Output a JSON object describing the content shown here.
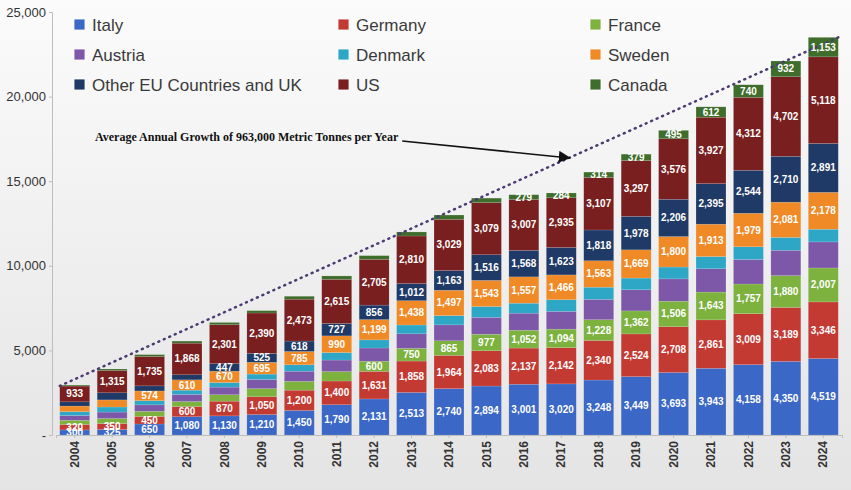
{
  "chart_data": {
    "type": "bar",
    "stacked": true,
    "data_labels": true,
    "grid": false,
    "legend": "top-left",
    "annotation": "Average Annual Growth of 963,000 Metric Tonnes per Year",
    "trend": {
      "start": 2900,
      "end": 23500
    },
    "categories": [
      "2004",
      "2005",
      "2006",
      "2007",
      "2008",
      "2009",
      "2010",
      "2011",
      "2012",
      "2013",
      "2014",
      "2015",
      "2016",
      "2017",
      "2018",
      "2019",
      "2020",
      "2021",
      "2022",
      "2023",
      "2024"
    ],
    "ylim": [
      0,
      25000
    ],
    "yticks": [
      {
        "value": 0,
        "label": "-"
      },
      {
        "value": 5000,
        "label": "5,000"
      },
      {
        "value": 10000,
        "label": "10,000"
      },
      {
        "value": 15000,
        "label": "15,000"
      },
      {
        "value": 20000,
        "label": "20,000"
      },
      {
        "value": 25000,
        "label": "25,000"
      }
    ],
    "series": [
      {
        "name": "Italy",
        "color": "#3b67c6",
        "values": [
          300,
          325,
          650,
          1080,
          1130,
          1210,
          1450,
          1790,
          2131,
          2513,
          2740,
          2894,
          3001,
          3020,
          3248,
          3449,
          3693,
          3943,
          4158,
          4350,
          4519
        ],
        "value_labels": [
          "300",
          "325",
          "650",
          "1,080",
          "1,130",
          "1,210",
          "1,450",
          "1,790",
          "2,131",
          "2,513",
          "2,740",
          "2,894",
          "3,001",
          "3,020",
          "3,248",
          "3,449",
          "3,693",
          "3,943",
          "4,158",
          "4,350",
          "4,519"
        ]
      },
      {
        "name": "Germany",
        "color": "#c33a33",
        "values": [
          320,
          350,
          450,
          600,
          870,
          1050,
          1200,
          1400,
          1631,
          1858,
          1964,
          2083,
          2137,
          2142,
          2340,
          2524,
          2708,
          2861,
          3009,
          3189,
          3346
        ],
        "value_labels": [
          "320",
          "350",
          "450",
          "600",
          "870",
          "1,050",
          "1,200",
          "1,400",
          "1,631",
          "1,858",
          "1,964",
          "2,083",
          "2,137",
          "2,142",
          "2,340",
          "2,524",
          "2,708",
          "2,861",
          "3,009",
          "3,189",
          "3,346"
        ]
      },
      {
        "name": "France",
        "color": "#7db23f",
        "values": [
          250,
          300,
          300,
          300,
          380,
          480,
          520,
          560,
          600,
          750,
          865,
          977,
          1052,
          1094,
          1228,
          1362,
          1506,
          1643,
          1757,
          1880,
          2007
        ],
        "value_labels": [
          null,
          null,
          null,
          null,
          null,
          null,
          null,
          null,
          "600",
          "750",
          "865",
          "977",
          "1,052",
          "1,094",
          "1,228",
          "1,362",
          "1,506",
          "1,643",
          "1,757",
          "1,880",
          "2,007"
        ]
      },
      {
        "name": "Austria",
        "color": "#7d58a8",
        "values": [
          280,
          380,
          380,
          420,
          450,
          540,
          600,
          680,
          780,
          860,
          940,
          1000,
          1010,
          1050,
          1200,
          1250,
          1320,
          1380,
          1450,
          1500,
          1540
        ]
      },
      {
        "name": "Denmark",
        "color": "#2ea7c7",
        "values": [
          230,
          300,
          250,
          250,
          270,
          320,
          380,
          440,
          480,
          520,
          550,
          640,
          590,
          690,
          720,
          690,
          700,
          720,
          750,
          760,
          750
        ]
      },
      {
        "name": "Sweden",
        "color": "#f08a26",
        "values": [
          330,
          420,
          574,
          610,
          670,
          695,
          785,
          990,
          1199,
          1438,
          1497,
          1543,
          1557,
          1466,
          1563,
          1669,
          1800,
          1913,
          1979,
          2081,
          2178
        ],
        "value_labels": [
          null,
          null,
          "574",
          "610",
          "670",
          "695",
          "785",
          "990",
          "1,199",
          "1,438",
          "1,497",
          "1,543",
          "1,557",
          "1,466",
          "1,563",
          "1,669",
          "1,800",
          "1,913",
          "1,979",
          "2,081",
          "2,178"
        ]
      },
      {
        "name": "Other EU Countries and UK",
        "color": "#1f3a66",
        "values": [
          250,
          420,
          300,
          300,
          447,
          525,
          618,
          727,
          856,
          1012,
          1163,
          1516,
          1568,
          1623,
          1818,
          1978,
          2206,
          2395,
          2544,
          2710,
          2891
        ],
        "value_labels": [
          null,
          null,
          null,
          null,
          "447",
          "525",
          "618",
          "727",
          "856",
          "1,012",
          "1,163",
          "1,516",
          "1,568",
          "1,623",
          "1,818",
          "1,978",
          "2,206",
          "2,395",
          "2,544",
          "2,710",
          "2,891"
        ]
      },
      {
        "name": "US",
        "color": "#7a1f20",
        "values": [
          933,
          1315,
          1735,
          1868,
          2301,
          2390,
          2473,
          2615,
          2705,
          2810,
          3029,
          3079,
          3007,
          2935,
          3107,
          3297,
          3576,
          3927,
          4312,
          4702,
          5118
        ],
        "value_labels": [
          "933",
          "1,315",
          "1,735",
          "1,868",
          "2,301",
          "2,390",
          "2,473",
          "2,615",
          "2,705",
          "2,810",
          "3,029",
          "3,079",
          "3,007",
          "2,935",
          "3,107",
          "3,297",
          "3,576",
          "3,927",
          "4,312",
          "4,702",
          "5,118"
        ]
      },
      {
        "name": "Canada",
        "color": "#3f6d2c",
        "values": [
          57,
          90,
          111,
          122,
          132,
          140,
          174,
          198,
          218,
          239,
          252,
          268,
          279,
          284,
          314,
          379,
          495,
          612,
          740,
          932,
          1153
        ],
        "value_labels": [
          null,
          null,
          null,
          null,
          null,
          null,
          null,
          null,
          null,
          null,
          null,
          null,
          "279",
          "284",
          "314",
          "379",
          "495",
          "612",
          "740",
          "932",
          "1,153"
        ]
      }
    ]
  }
}
